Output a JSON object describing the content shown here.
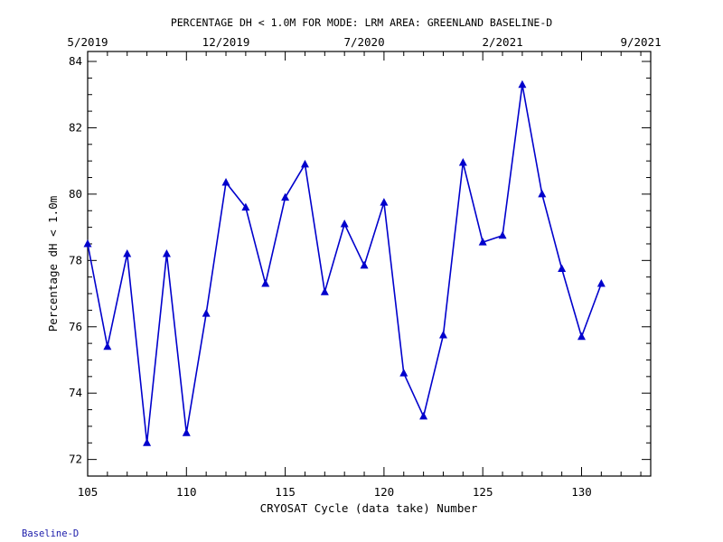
{
  "footer_label": "Baseline-D",
  "chart_data": {
    "type": "line",
    "title": "PERCENTAGE DH < 1.0M FOR MODE: LRM AREA: GREENLAND BASELINE-D",
    "xlabel": "CRYOSAT Cycle (data take) Number",
    "ylabel": "Percentage dH < 1.0m",
    "xlim": [
      105,
      133.5
    ],
    "ylim": [
      71.5,
      84.3
    ],
    "x_ticks": [
      105,
      110,
      115,
      120,
      125,
      130
    ],
    "y_ticks": [
      72,
      74,
      76,
      78,
      80,
      82,
      84
    ],
    "top_axis_ticks": [
      {
        "x": 105,
        "label": "5/2019"
      },
      {
        "x": 112,
        "label": "12/2019"
      },
      {
        "x": 119,
        "label": "7/2020"
      },
      {
        "x": 126,
        "label": "2/2021"
      },
      {
        "x": 133,
        "label": "9/2021"
      }
    ],
    "series": [
      {
        "color": "#0000cc",
        "marker": "triangle",
        "x": [
          105,
          106,
          107,
          108,
          109,
          110,
          111,
          112,
          113,
          114,
          115,
          116,
          117,
          118,
          119,
          120,
          121,
          122,
          123,
          124,
          125,
          126,
          127,
          128,
          129,
          130,
          131
        ],
        "y": [
          78.5,
          75.4,
          78.2,
          72.5,
          78.2,
          72.8,
          76.4,
          80.35,
          79.6,
          77.3,
          79.9,
          80.9,
          77.05,
          79.1,
          77.85,
          79.75,
          74.6,
          73.3,
          75.75,
          80.95,
          78.55,
          78.75,
          83.3,
          80.0,
          77.75,
          75.7,
          77.3
        ]
      }
    ],
    "grid": false,
    "legend": false
  }
}
